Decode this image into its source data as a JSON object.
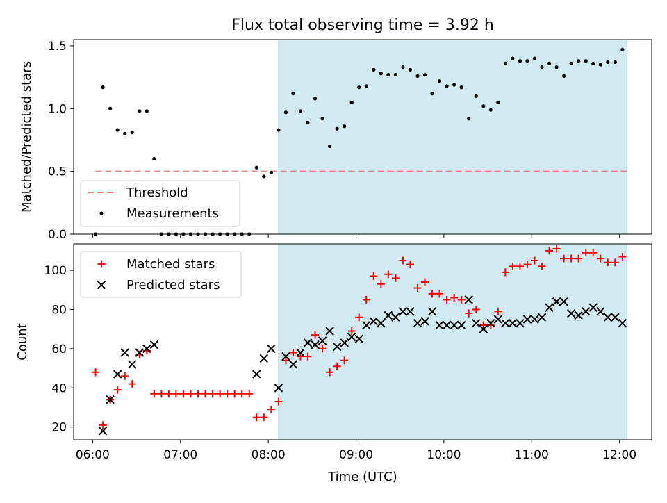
{
  "title": "Flux total observing time = 3.92 h",
  "colors": {
    "shade": "#add8e6",
    "threshold": "#f08080",
    "measurement": "#000000",
    "matched": "#ff0000",
    "predicted": "#000000"
  },
  "chart_data": [
    {
      "type": "scatter",
      "ylabel": "Matched/Predicted stars",
      "xlim": [
        "05:47",
        "12:22"
      ],
      "ylim": [
        0,
        1.55
      ],
      "yticks": [
        "0.0",
        "0.5",
        "1.0",
        "1.5"
      ],
      "shaded_interval": [
        "08:07",
        "12:05"
      ],
      "legend": {
        "placement": "lower-left",
        "entries": [
          "Threshold",
          "Measurements"
        ]
      },
      "threshold": {
        "name": "Threshold",
        "value": 0.5,
        "x_range": [
          "06:02",
          "12:05"
        ]
      },
      "series": [
        {
          "name": "Measurements",
          "points": [
            [
              "06:02",
              0.0
            ],
            [
              "06:07",
              1.17
            ],
            [
              "06:12",
              1.0
            ],
            [
              "06:17",
              0.83
            ],
            [
              "06:22",
              0.8
            ],
            [
              "06:27",
              0.81
            ],
            [
              "06:32",
              0.98
            ],
            [
              "06:37",
              0.98
            ],
            [
              "06:42",
              0.6
            ],
            [
              "06:47",
              0.0
            ],
            [
              "06:52",
              0.0
            ],
            [
              "06:57",
              0.0
            ],
            [
              "07:02",
              0.0
            ],
            [
              "07:07",
              0.0
            ],
            [
              "07:12",
              0.0
            ],
            [
              "07:17",
              0.0
            ],
            [
              "07:22",
              0.0
            ],
            [
              "07:27",
              0.0
            ],
            [
              "07:32",
              0.0
            ],
            [
              "07:37",
              0.0
            ],
            [
              "07:42",
              0.0
            ],
            [
              "07:47",
              0.0
            ],
            [
              "07:52",
              0.53
            ],
            [
              "07:57",
              0.46
            ],
            [
              "08:02",
              0.49
            ],
            [
              "08:07",
              0.83
            ],
            [
              "08:12",
              0.97
            ],
            [
              "08:17",
              1.12
            ],
            [
              "08:22",
              0.98
            ],
            [
              "08:27",
              0.89
            ],
            [
              "08:32",
              1.08
            ],
            [
              "08:37",
              0.92
            ],
            [
              "08:42",
              0.7
            ],
            [
              "08:47",
              0.84
            ],
            [
              "08:52",
              0.86
            ],
            [
              "08:57",
              1.05
            ],
            [
              "09:02",
              1.17
            ],
            [
              "09:07",
              1.18
            ],
            [
              "09:12",
              1.31
            ],
            [
              "09:17",
              1.28
            ],
            [
              "09:22",
              1.27
            ],
            [
              "09:27",
              1.27
            ],
            [
              "09:32",
              1.33
            ],
            [
              "09:37",
              1.31
            ],
            [
              "09:42",
              1.26
            ],
            [
              "09:47",
              1.27
            ],
            [
              "09:52",
              1.12
            ],
            [
              "09:57",
              1.22
            ],
            [
              "10:02",
              1.18
            ],
            [
              "10:07",
              1.19
            ],
            [
              "10:12",
              1.17
            ],
            [
              "10:17",
              0.92
            ],
            [
              "10:22",
              1.1
            ],
            [
              "10:27",
              1.02
            ],
            [
              "10:32",
              0.99
            ],
            [
              "10:37",
              1.05
            ],
            [
              "10:42",
              1.36
            ],
            [
              "10:47",
              1.4
            ],
            [
              "10:52",
              1.38
            ],
            [
              "10:57",
              1.38
            ],
            [
              "11:02",
              1.4
            ],
            [
              "11:07",
              1.33
            ],
            [
              "11:12",
              1.36
            ],
            [
              "11:17",
              1.33
            ],
            [
              "11:22",
              1.26
            ],
            [
              "11:27",
              1.36
            ],
            [
              "11:32",
              1.38
            ],
            [
              "11:37",
              1.38
            ],
            [
              "11:42",
              1.36
            ],
            [
              "11:47",
              1.35
            ],
            [
              "11:52",
              1.37
            ],
            [
              "11:57",
              1.37
            ],
            [
              "12:02",
              1.47
            ]
          ]
        }
      ]
    },
    {
      "type": "scatter",
      "xlabel": "Time (UTC)",
      "ylabel": "Count",
      "xlim": [
        "05:47",
        "12:22"
      ],
      "ylim": [
        13.5,
        113.5
      ],
      "xticks": [
        "06:00",
        "07:00",
        "08:00",
        "09:00",
        "10:00",
        "11:00",
        "12:00"
      ],
      "yticks": [
        "20",
        "40",
        "60",
        "80",
        "100"
      ],
      "shaded_interval": [
        "08:07",
        "12:05"
      ],
      "legend": {
        "placement": "upper-left",
        "entries": [
          "Matched stars",
          "Predicted stars"
        ]
      },
      "series": [
        {
          "name": "Matched stars",
          "marker": "plus",
          "points": [
            [
              "06:02",
              48
            ],
            [
              "06:07",
              21
            ],
            [
              "06:12",
              34
            ],
            [
              "06:17",
              39
            ],
            [
              "06:22",
              46
            ],
            [
              "06:27",
              42
            ],
            [
              "06:32",
              57
            ],
            [
              "06:37",
              59
            ],
            [
              "06:42",
              37
            ],
            [
              "06:47",
              37
            ],
            [
              "06:52",
              37
            ],
            [
              "06:57",
              37
            ],
            [
              "07:02",
              37
            ],
            [
              "07:07",
              37
            ],
            [
              "07:12",
              37
            ],
            [
              "07:17",
              37
            ],
            [
              "07:22",
              37
            ],
            [
              "07:27",
              37
            ],
            [
              "07:32",
              37
            ],
            [
              "07:37",
              37
            ],
            [
              "07:42",
              37
            ],
            [
              "07:47",
              37
            ],
            [
              "07:52",
              25
            ],
            [
              "07:57",
              25
            ],
            [
              "08:02",
              29
            ],
            [
              "08:07",
              33
            ],
            [
              "08:12",
              54
            ],
            [
              "08:17",
              58
            ],
            [
              "08:22",
              56
            ],
            [
              "08:27",
              56
            ],
            [
              "08:32",
              67
            ],
            [
              "08:37",
              60
            ],
            [
              "08:42",
              48
            ],
            [
              "08:47",
              51
            ],
            [
              "08:52",
              54
            ],
            [
              "08:57",
              69
            ],
            [
              "09:02",
              76
            ],
            [
              "09:07",
              85
            ],
            [
              "09:12",
              97
            ],
            [
              "09:17",
              93
            ],
            [
              "09:22",
              98
            ],
            [
              "09:27",
              96
            ],
            [
              "09:32",
              105
            ],
            [
              "09:37",
              103
            ],
            [
              "09:42",
              91
            ],
            [
              "09:47",
              94
            ],
            [
              "09:52",
              88
            ],
            [
              "09:57",
              88
            ],
            [
              "10:02",
              85
            ],
            [
              "10:07",
              86
            ],
            [
              "10:12",
              85
            ],
            [
              "10:17",
              78
            ],
            [
              "10:22",
              80
            ],
            [
              "10:27",
              72
            ],
            [
              "10:32",
              72
            ],
            [
              "10:37",
              79
            ],
            [
              "10:42",
              99
            ],
            [
              "10:47",
              102
            ],
            [
              "10:52",
              102
            ],
            [
              "10:57",
              103
            ],
            [
              "11:02",
              105
            ],
            [
              "11:07",
              102
            ],
            [
              "11:12",
              110
            ],
            [
              "11:17",
              111
            ],
            [
              "11:22",
              106
            ],
            [
              "11:27",
              106
            ],
            [
              "11:32",
              106
            ],
            [
              "11:37",
              109
            ],
            [
              "11:42",
              109
            ],
            [
              "11:47",
              106
            ],
            [
              "11:52",
              104
            ],
            [
              "11:57",
              104
            ],
            [
              "12:02",
              107
            ]
          ]
        },
        {
          "name": "Predicted stars",
          "marker": "x",
          "points": [
            [
              "06:07",
              18
            ],
            [
              "06:12",
              34
            ],
            [
              "06:17",
              47
            ],
            [
              "06:22",
              58
            ],
            [
              "06:27",
              52
            ],
            [
              "06:32",
              58
            ],
            [
              "06:37",
              60
            ],
            [
              "06:42",
              62
            ],
            [
              "07:52",
              47
            ],
            [
              "07:57",
              55
            ],
            [
              "08:02",
              60
            ],
            [
              "08:07",
              40
            ],
            [
              "08:12",
              56
            ],
            [
              "08:17",
              52
            ],
            [
              "08:22",
              58
            ],
            [
              "08:27",
              63
            ],
            [
              "08:32",
              62
            ],
            [
              "08:37",
              64
            ],
            [
              "08:42",
              69
            ],
            [
              "08:47",
              61
            ],
            [
              "08:52",
              63
            ],
            [
              "08:57",
              66
            ],
            [
              "09:02",
              65
            ],
            [
              "09:07",
              72
            ],
            [
              "09:12",
              74
            ],
            [
              "09:17",
              73
            ],
            [
              "09:22",
              77
            ],
            [
              "09:27",
              76
            ],
            [
              "09:32",
              79
            ],
            [
              "09:37",
              79
            ],
            [
              "09:42",
              73
            ],
            [
              "09:47",
              74
            ],
            [
              "09:52",
              79
            ],
            [
              "09:57",
              72
            ],
            [
              "10:02",
              72
            ],
            [
              "10:07",
              72
            ],
            [
              "10:12",
              72
            ],
            [
              "10:17",
              85
            ],
            [
              "10:22",
              73
            ],
            [
              "10:27",
              70
            ],
            [
              "10:32",
              73
            ],
            [
              "10:37",
              75
            ],
            [
              "10:42",
              73
            ],
            [
              "10:47",
              73
            ],
            [
              "10:52",
              73
            ],
            [
              "10:57",
              75
            ],
            [
              "11:02",
              75
            ],
            [
              "11:07",
              76
            ],
            [
              "11:12",
              81
            ],
            [
              "11:17",
              84
            ],
            [
              "11:22",
              84
            ],
            [
              "11:27",
              78
            ],
            [
              "11:32",
              77
            ],
            [
              "11:37",
              79
            ],
            [
              "11:42",
              81
            ],
            [
              "11:47",
              79
            ],
            [
              "11:52",
              76
            ],
            [
              "11:57",
              76
            ],
            [
              "12:02",
              73
            ]
          ]
        }
      ]
    }
  ]
}
